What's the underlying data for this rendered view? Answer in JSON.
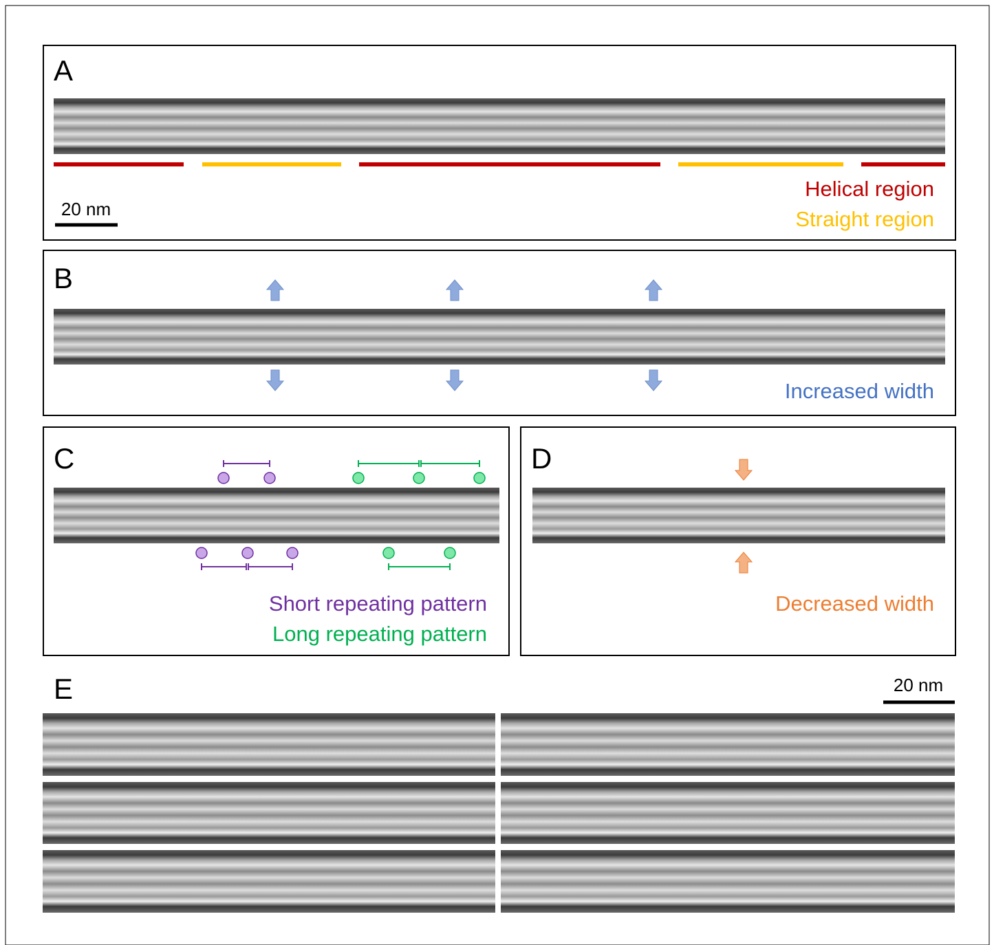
{
  "panels": {
    "a": {
      "label": "A",
      "scale_bar": "20 nm",
      "legend": [
        "Helical region",
        "Straight region"
      ]
    },
    "b": {
      "label": "B",
      "legend": "Increased width"
    },
    "c": {
      "label": "C",
      "legend": [
        "Short repeating pattern",
        "Long repeating pattern"
      ]
    },
    "d": {
      "label": "D",
      "legend": "Decreased width"
    },
    "e": {
      "label": "E",
      "scale_bar": "20 nm"
    }
  }
}
